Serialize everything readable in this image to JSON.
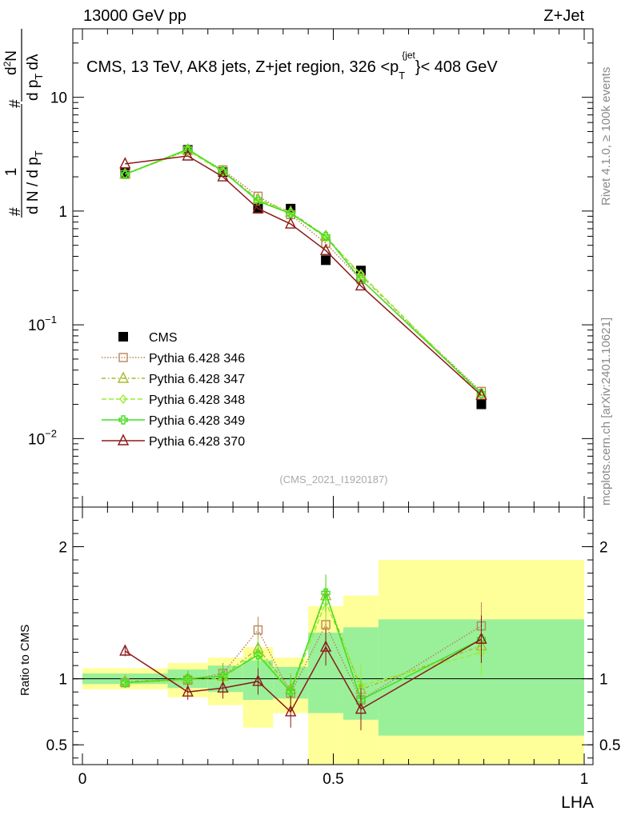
{
  "header": {
    "left_label": "13000 GeV pp",
    "right_label": "Z+Jet"
  },
  "side": {
    "rivet_label": "Rivet 4.1.0, ≥ 100k events",
    "mcplots_label": "mcplots.cern.ch [arXiv:2401.10621]"
  },
  "chart_data": {
    "type": "line",
    "title": "CMS, 13 TeV, AK8 jets, Z+jet region, 326 <p",
    "title_sub": "T",
    "title_sup": "{jet",
    "title_close": "}< 408 GeV",
    "watermark": "(CMS_2021_I1920187)",
    "ylabel": {
      "frac_num": "1",
      "frac_den": "d N / d p",
      "frac_den_sub": "T",
      "deriv_num": "d",
      "deriv_num_sup": "2",
      "deriv_num_var": "N",
      "deriv_den": "d p",
      "deriv_den_sub": "T",
      "deriv_den_var": "dλ",
      "hash": "#"
    },
    "xlabel": "LHA",
    "xlim": [
      0,
      1
    ],
    "ylim_log": [
      0.0025,
      40
    ],
    "yticks_main": [
      {
        "value": 10,
        "label": "10"
      },
      {
        "value": 1,
        "label": "1"
      },
      {
        "value": 0.1,
        "label": "10",
        "exp": "−1"
      },
      {
        "value": 0.01,
        "label": "10",
        "exp": "−2"
      }
    ],
    "xticks": [
      {
        "value": 0,
        "label": "0"
      },
      {
        "value": 0.5,
        "label": "0.5"
      },
      {
        "value": 1,
        "label": "1"
      }
    ],
    "ratio": {
      "ylabel": "Ratio to CMS",
      "ylim": [
        0.35,
        2.3
      ],
      "yticks": [
        {
          "value": 2,
          "label": "2"
        },
        {
          "value": 1,
          "label": "1"
        },
        {
          "value": 0.5,
          "label": "0.5"
        }
      ],
      "bands": [
        {
          "x0": 0.0,
          "x1": 0.17,
          "y_lo": 0.92,
          "y_hi": 1.08,
          "g_lo": 0.96,
          "g_hi": 1.04
        },
        {
          "x0": 0.17,
          "x1": 0.25,
          "y_lo": 0.86,
          "y_hi": 1.12,
          "g_lo": 0.93,
          "g_hi": 1.07
        },
        {
          "x0": 0.25,
          "x1": 0.32,
          "y_lo": 0.8,
          "y_hi": 1.16,
          "g_lo": 0.9,
          "g_hi": 1.1
        },
        {
          "x0": 0.32,
          "x1": 0.38,
          "y_lo": 0.63,
          "y_hi": 1.24,
          "g_lo": 0.84,
          "g_hi": 1.14
        },
        {
          "x0": 0.38,
          "x1": 0.45,
          "y_lo": 0.74,
          "y_hi": 1.16,
          "g_lo": 0.85,
          "g_hi": 1.09
        },
        {
          "x0": 0.45,
          "x1": 0.52,
          "y_lo": 0.2,
          "y_hi": 1.55,
          "g_lo": 0.74,
          "g_hi": 1.35
        },
        {
          "x0": 0.52,
          "x1": 0.59,
          "y_lo": 0.2,
          "y_hi": 1.63,
          "g_lo": 0.69,
          "g_hi": 1.39
        },
        {
          "x0": 0.59,
          "x1": 1.0,
          "y_lo": 0.2,
          "y_hi": 1.9,
          "g_lo": 0.57,
          "g_hi": 1.45
        }
      ]
    },
    "x": [
      0.085,
      0.21,
      0.28,
      0.35,
      0.415,
      0.485,
      0.555,
      0.795
    ],
    "series": [
      {
        "name": "CMS",
        "type": "data",
        "color": "#000000",
        "values": [
          2.15,
          3.45,
          2.2,
          1.05,
          1.05,
          0.37,
          0.3,
          0.02
        ]
      },
      {
        "name": "Pythia 6.428 346",
        "marker": "square",
        "dash": "1.5,2",
        "color": "#b8865c",
        "values": [
          2.1,
          3.4,
          2.3,
          1.35,
          0.93,
          0.52,
          0.25,
          0.026
        ],
        "ratio": [
          0.97,
          0.99,
          1.04,
          1.37,
          0.89,
          1.41,
          0.84,
          1.4
        ]
      },
      {
        "name": "Pythia 6.428 347",
        "marker": "triangle",
        "dash": "5,3,1.5,3",
        "color": "#aab830",
        "values": [
          2.12,
          3.45,
          2.24,
          1.27,
          0.98,
          0.6,
          0.27,
          0.025
        ],
        "ratio": [
          0.98,
          1.0,
          1.02,
          1.23,
          0.92,
          1.63,
          0.92,
          1.25
        ]
      },
      {
        "name": "Pythia 6.428 348",
        "marker": "diamond",
        "dash": "6,3",
        "color": "#99ee33",
        "values": [
          2.1,
          3.4,
          2.2,
          1.25,
          0.97,
          0.58,
          0.28,
          0.024
        ],
        "ratio": [
          0.97,
          0.99,
          1.0,
          1.2,
          0.9,
          1.58,
          0.95,
          1.2
        ]
      },
      {
        "name": "Pythia 6.428 349",
        "marker": "cross",
        "dash": "",
        "color": "#44dd22",
        "values": [
          2.1,
          3.5,
          2.25,
          1.22,
          0.95,
          0.6,
          0.25,
          0.025
        ],
        "ratio": [
          0.97,
          1.0,
          1.02,
          1.18,
          0.9,
          1.65,
          0.84,
          1.3
        ]
      },
      {
        "name": "Pythia 6.428 370",
        "marker": "triangle",
        "dash": "",
        "color": "#8b1a1a",
        "values": [
          2.6,
          3.05,
          2.0,
          1.05,
          0.77,
          0.45,
          0.22,
          0.024
        ],
        "ratio": [
          1.21,
          0.9,
          0.93,
          0.98,
          0.75,
          1.24,
          0.77,
          1.3
        ]
      }
    ]
  }
}
